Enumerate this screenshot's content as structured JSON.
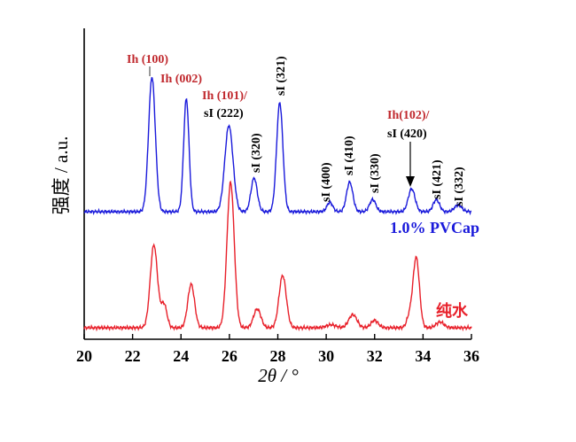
{
  "chart_data": {
    "type": "line",
    "xlabel": "2θ / °",
    "ylabel": "强度 / a.u.",
    "xlim": [
      20,
      36
    ],
    "xticks": [
      "20",
      "22",
      "24",
      "26",
      "28",
      "30",
      "32",
      "34",
      "36"
    ],
    "grid": false,
    "colors": {
      "pvcap": "#1a1adb",
      "water": "#e8202a",
      "ih_label": "#c0282d",
      "si_label": "#000000"
    },
    "series": [
      {
        "key": "pvcap",
        "name": "1.0% PVCap",
        "baseline": 0.0,
        "peaks": [
          [
            22.8,
            1.0,
            0.14
          ],
          [
            24.22,
            0.84,
            0.11
          ],
          [
            25.98,
            0.64,
            0.17
          ],
          [
            27.02,
            0.25,
            0.13
          ],
          [
            28.08,
            0.81,
            0.13
          ],
          [
            30.15,
            0.07,
            0.12
          ],
          [
            30.97,
            0.22,
            0.13
          ],
          [
            31.92,
            0.09,
            0.13
          ],
          [
            33.53,
            0.17,
            0.14
          ],
          [
            34.55,
            0.09,
            0.13
          ],
          [
            35.45,
            0.05,
            0.15
          ]
        ]
      },
      {
        "key": "water",
        "name": "纯水",
        "baseline": 0.0,
        "peaks": [
          [
            22.88,
            0.57,
            0.15
          ],
          [
            23.3,
            0.16,
            0.12
          ],
          [
            24.42,
            0.3,
            0.14
          ],
          [
            26.05,
            1.0,
            0.15
          ],
          [
            27.15,
            0.13,
            0.15
          ],
          [
            28.2,
            0.36,
            0.15
          ],
          [
            30.2,
            0.02,
            0.2
          ],
          [
            31.1,
            0.09,
            0.17
          ],
          [
            32.0,
            0.05,
            0.15
          ],
          [
            33.45,
            0.08,
            0.12
          ],
          [
            33.72,
            0.48,
            0.13
          ],
          [
            34.7,
            0.04,
            0.16
          ]
        ]
      }
    ],
    "annotations": [
      {
        "text": "Ih (100)",
        "family": "Ih"
      },
      {
        "text": "Ih (002)",
        "family": "Ih"
      },
      {
        "text": "Ih (101)/",
        "family": "Ih"
      },
      {
        "text": "sI (222)",
        "family": "sI"
      },
      {
        "text": "sI (320)",
        "family": "sI"
      },
      {
        "text": "sI (321)",
        "family": "sI"
      },
      {
        "text": "sI (400)",
        "family": "sI"
      },
      {
        "text": "sI (410)",
        "family": "sI"
      },
      {
        "text": "sI (330)",
        "family": "sI"
      },
      {
        "text": "Ih(102)/",
        "family": "Ih"
      },
      {
        "text": "sI (420)",
        "family": "sI"
      },
      {
        "text": "sI (421)",
        "family": "sI"
      },
      {
        "text": "sI (332)",
        "family": "sI"
      }
    ]
  }
}
